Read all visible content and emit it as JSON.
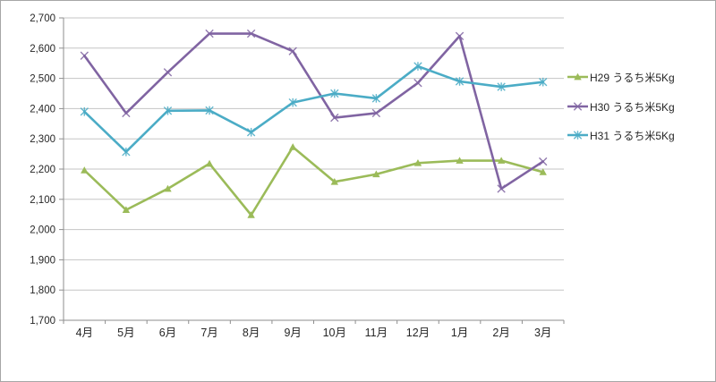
{
  "window": {
    "background": "#ffffff",
    "border_color": "#a6a6a6"
  },
  "chart_data": {
    "type": "line",
    "title": "",
    "xlabel": "",
    "ylabel": "",
    "categories": [
      "4月",
      "5月",
      "6月",
      "7月",
      "8月",
      "9月",
      "10月",
      "11月",
      "12月",
      "1月",
      "2月",
      "3月"
    ],
    "series": [
      {
        "name": "H29 うるち米5Kg",
        "color": "#9bbb59",
        "marker": "triangle",
        "values": [
          2196,
          2065,
          2135,
          2218,
          2048,
          2273,
          2158,
          2183,
          2220,
          2228,
          2228,
          2190
        ]
      },
      {
        "name": "H30 うるち米5Kg",
        "color": "#8064a2",
        "marker": "x-cross",
        "values": [
          2575,
          2385,
          2520,
          2648,
          2648,
          2590,
          2370,
          2385,
          2485,
          2640,
          2135,
          2225
        ]
      },
      {
        "name": "H31 うるち米5Kg",
        "color": "#4bacc6",
        "marker": "asterisk",
        "values": [
          2390,
          2257,
          2393,
          2394,
          2322,
          2420,
          2450,
          2434,
          2540,
          2490,
          2472,
          2488
        ]
      }
    ],
    "ylim": [
      1700,
      2700
    ],
    "ytick_step": 100,
    "ytick_labels": [
      "1,700",
      "1,800",
      "1,900",
      "2,000",
      "2,100",
      "2,200",
      "2,300",
      "2,400",
      "2,500",
      "2,600",
      "2,700"
    ],
    "grid": "horizontal",
    "legend_position": "right",
    "gridline_color": "#c5c5c5",
    "axis_color": "#8e8e8e",
    "text_color": "#262626"
  }
}
